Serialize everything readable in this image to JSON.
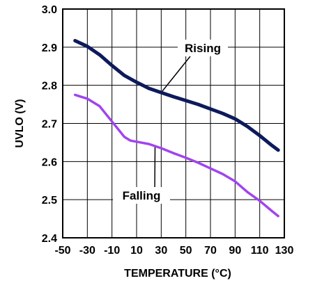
{
  "chart_data": {
    "type": "line",
    "title": "",
    "xlabel": "TEMPERATURE (°C)",
    "ylabel": "UVLO (V)",
    "xlim": [
      -50,
      130
    ],
    "ylim": [
      2.4,
      3.0
    ],
    "x_ticks": [
      -50,
      -30,
      -10,
      10,
      30,
      50,
      70,
      90,
      110,
      130
    ],
    "x_tick_labels": [
      "-50",
      "-30",
      "-10",
      "10",
      "30",
      "50",
      "70",
      "90",
      "110",
      "130"
    ],
    "y_ticks": [
      2.4,
      2.5,
      2.6,
      2.7,
      2.8,
      2.9,
      3.0
    ],
    "y_tick_labels": [
      "2.4",
      "2.5",
      "2.6",
      "2.7",
      "2.8",
      "2.9",
      "3.0"
    ],
    "grid": true,
    "legend": "none",
    "series": [
      {
        "name": "Rising",
        "color": "#0d1a5c",
        "x": [
          -40,
          -30,
          -20,
          -10,
          0,
          10,
          20,
          30,
          40,
          50,
          60,
          70,
          80,
          90,
          100,
          110,
          120,
          125
        ],
        "y": [
          2.917,
          2.902,
          2.88,
          2.852,
          2.826,
          2.808,
          2.792,
          2.781,
          2.77,
          2.76,
          2.75,
          2.738,
          2.726,
          2.712,
          2.692,
          2.668,
          2.642,
          2.63
        ]
      },
      {
        "name": "Falling",
        "color": "#a044f0",
        "x": [
          -40,
          -30,
          -20,
          -10,
          0,
          5,
          10,
          20,
          30,
          40,
          50,
          60,
          70,
          80,
          90,
          100,
          110,
          120,
          125
        ],
        "y": [
          2.775,
          2.765,
          2.745,
          2.705,
          2.665,
          2.655,
          2.652,
          2.646,
          2.635,
          2.622,
          2.61,
          2.597,
          2.582,
          2.567,
          2.548,
          2.52,
          2.497,
          2.47,
          2.457
        ]
      }
    ],
    "annotations": [
      {
        "text": "Rising",
        "points_to_series": "Rising",
        "at_x": 30
      },
      {
        "text": "Falling",
        "points_to_series": "Falling",
        "at_x": 25
      }
    ]
  }
}
